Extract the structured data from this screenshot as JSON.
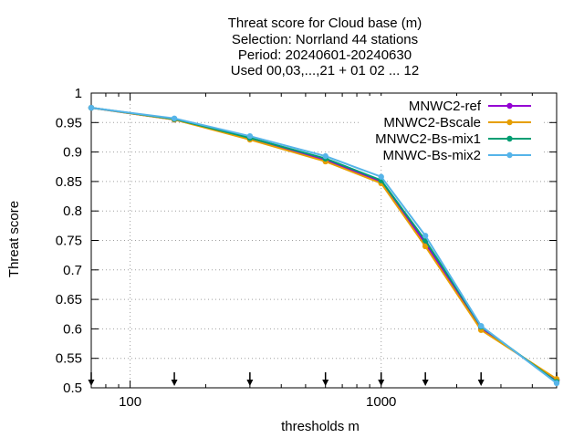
{
  "chart_data": {
    "type": "line",
    "title_lines": [
      "Threat score  for Cloud base (m)",
      "Selection: Norrland     44 stations",
      "Period: 20240601-20240630",
      "Used 00,03,...,21 + 01 02 ... 12"
    ],
    "xlabel": "thresholds m",
    "ylabel": "Threat score",
    "x_scale": "log",
    "xlim": [
      70,
      5000
    ],
    "ylim": [
      0.5,
      1.0
    ],
    "x_ticks": [
      {
        "value": 100,
        "label": "100"
      },
      {
        "value": 1000,
        "label": "1000"
      }
    ],
    "y_ticks": [
      {
        "value": 0.5,
        "label": "0.5"
      },
      {
        "value": 0.55,
        "label": "0.55"
      },
      {
        "value": 0.6,
        "label": "0.6"
      },
      {
        "value": 0.65,
        "label": "0.65"
      },
      {
        "value": 0.7,
        "label": "0.7"
      },
      {
        "value": 0.75,
        "label": "0.75"
      },
      {
        "value": 0.8,
        "label": "0.8"
      },
      {
        "value": 0.85,
        "label": "0.85"
      },
      {
        "value": 0.9,
        "label": "0.9"
      },
      {
        "value": 0.95,
        "label": "0.95"
      },
      {
        "value": 1.0,
        "label": "1"
      }
    ],
    "grid": true,
    "legend_position": "top-right",
    "threshold_markers": [
      70,
      150,
      300,
      600,
      1000,
      1500,
      2500,
      5000
    ],
    "x": [
      70,
      150,
      300,
      600,
      1000,
      1500,
      2500,
      5000
    ],
    "series": [
      {
        "name": "MNWC2-ref",
        "color": "#9400d3",
        "values": [
          0.975,
          0.955,
          0.923,
          0.886,
          0.85,
          0.745,
          0.6,
          0.513
        ]
      },
      {
        "name": "MNWC2-Bscale",
        "color": "#e69f00",
        "values": [
          0.975,
          0.955,
          0.921,
          0.884,
          0.847,
          0.74,
          0.598,
          0.515
        ]
      },
      {
        "name": "MNWC2-Bs-mix1",
        "color": "#009e73",
        "values": [
          0.975,
          0.956,
          0.924,
          0.889,
          0.852,
          0.75,
          0.604,
          0.51
        ]
      },
      {
        "name": "MNWC-Bs-mix2",
        "color": "#56b4e9",
        "values": [
          0.975,
          0.957,
          0.927,
          0.893,
          0.858,
          0.758,
          0.605,
          0.508
        ]
      }
    ]
  }
}
